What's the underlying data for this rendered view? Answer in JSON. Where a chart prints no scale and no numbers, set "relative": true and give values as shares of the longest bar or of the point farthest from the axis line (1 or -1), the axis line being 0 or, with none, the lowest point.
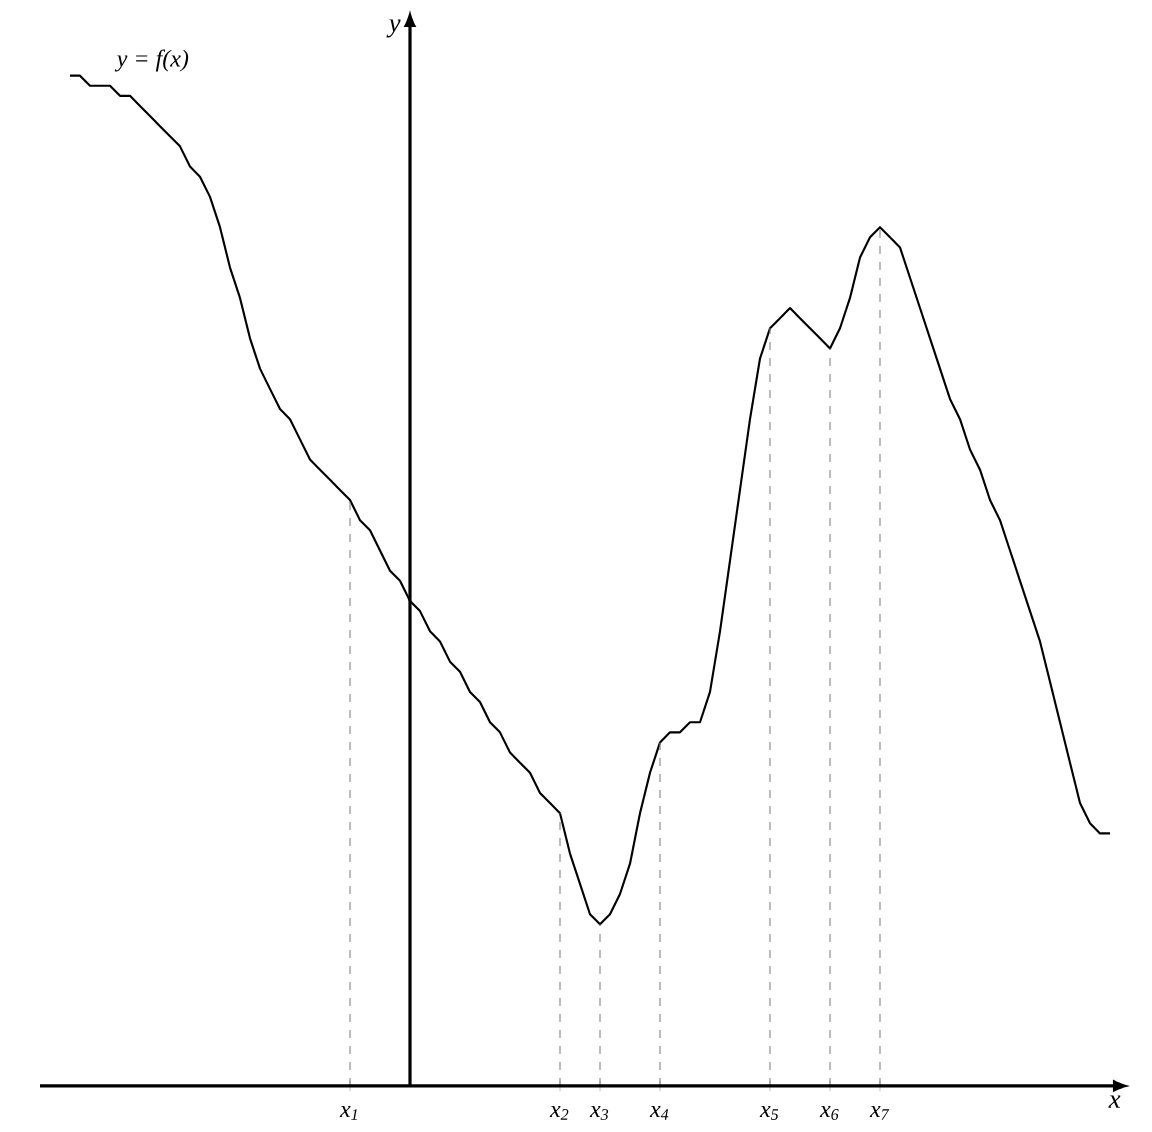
{
  "chart_data": {
    "type": "line",
    "relative": true,
    "xlabel": "x",
    "ylabel": "y",
    "color": "#000000",
    "marker": "none",
    "line_style": "solid",
    "legend": false,
    "categories": [
      null,
      null,
      null,
      null,
      null,
      null,
      null,
      null,
      null,
      null,
      null,
      null,
      null,
      null,
      null,
      null,
      null,
      null,
      null,
      null,
      null,
      null,
      null,
      null,
      null,
      null,
      null,
      null,
      "x$_{1}$",
      null,
      null,
      null,
      null,
      null,
      null,
      null,
      null,
      null,
      null,
      null,
      null,
      null,
      null,
      null,
      null,
      null,
      null,
      null,
      null,
      "x$_{2}$",
      null,
      null,
      null,
      "x$_{3}$",
      null,
      null,
      null,
      null,
      null,
      "x$_{4}$",
      null,
      null,
      null,
      null,
      null,
      null,
      null,
      null,
      null,
      null,
      "x$_{5}$",
      null,
      null,
      null,
      null,
      null,
      "x$_{6}$",
      null,
      null,
      null,
      null,
      "x$_{7}$",
      null,
      null,
      null,
      null,
      null,
      null,
      null,
      null,
      null,
      null,
      null,
      null,
      null,
      null,
      null,
      null,
      null,
      null,
      null,
      null,
      null,
      null,
      null
    ],
    "ref_lines": [
      {
        "axis": "x",
        "value": "x$_{1}$",
        "line_style": "dashed"
      },
      {
        "axis": "x",
        "value": "x$_{2}$",
        "line_style": "dashed"
      },
      {
        "axis": "x",
        "value": "x$_{3}$",
        "line_style": "dashed"
      },
      {
        "axis": "x",
        "value": "x$_{4}$",
        "line_style": "dashed"
      },
      {
        "axis": "x",
        "value": "x$_{5}$",
        "line_style": "dashed"
      },
      {
        "axis": "x",
        "value": "x$_{6}$",
        "line_style": "dashed"
      },
      {
        "axis": "x",
        "value": "x$_{7}$",
        "line_style": "dashed"
      }
    ],
    "series": [
      {
        "name": "y = f(x)",
        "values": [
          1.0,
          1.0,
          0.99,
          0.99,
          0.99,
          0.98,
          0.98,
          0.97,
          0.96,
          0.95,
          0.94,
          0.93,
          0.91,
          0.9,
          0.88,
          0.85,
          0.81,
          0.78,
          0.74,
          0.71,
          0.69,
          0.67,
          0.66,
          0.64,
          0.62,
          0.61,
          0.6,
          0.59,
          0.58,
          0.56,
          0.55,
          0.53,
          0.51,
          0.5,
          0.48,
          0.47,
          0.45,
          0.44,
          0.42,
          0.41,
          0.39,
          0.38,
          0.36,
          0.35,
          0.33,
          0.32,
          0.31,
          0.29,
          0.28,
          0.27,
          0.23,
          0.2,
          0.17,
          0.16,
          0.17,
          0.19,
          0.22,
          0.27,
          0.31,
          0.34,
          0.35,
          0.35,
          0.36,
          0.36,
          0.39,
          0.45,
          0.52,
          0.59,
          0.66,
          0.72,
          0.75,
          0.76,
          0.77,
          0.76,
          0.75,
          0.74,
          0.73,
          0.75,
          0.78,
          0.82,
          0.84,
          0.85,
          0.84,
          0.83,
          0.8,
          0.77,
          0.74,
          0.71,
          0.68,
          0.66,
          0.63,
          0.61,
          0.58,
          0.56,
          0.53,
          0.5,
          0.47,
          0.44,
          0.4,
          0.36,
          0.32,
          0.28,
          0.26,
          0.25,
          0.25
        ]
      }
    ]
  }
}
